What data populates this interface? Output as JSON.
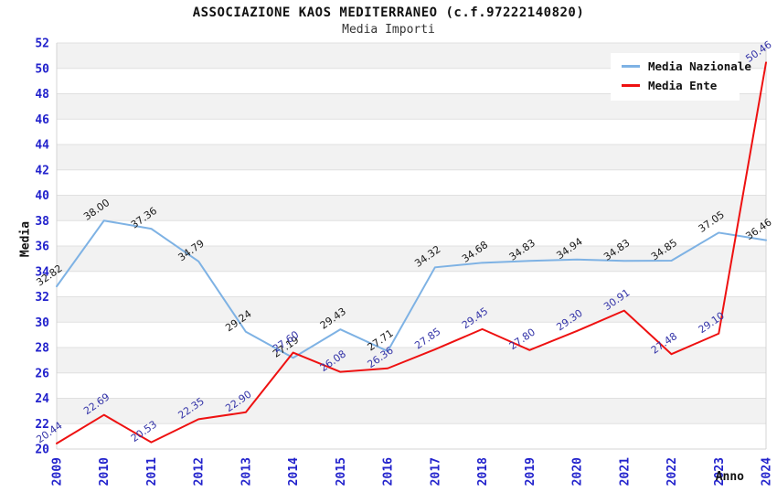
{
  "page": {
    "title": "ASSOCIAZIONE KAOS MEDITERRANEO (c.f.97222140820)",
    "subtitle": "Media Importi"
  },
  "legend": {
    "items": [
      {
        "label": "Media Nazionale",
        "color": "#7eb2e4"
      },
      {
        "label": "Media Ente",
        "color": "#ee1111"
      }
    ]
  },
  "chart_data": {
    "type": "line",
    "title": "ASSOCIAZIONE KAOS MEDITERRANEO (c.f.97222140820)",
    "subtitle": "Media Importi",
    "xlabel": "Anno",
    "ylabel": "Media",
    "x": [
      2009,
      2010,
      2011,
      2012,
      2013,
      2014,
      2015,
      2016,
      2017,
      2018,
      2019,
      2020,
      2021,
      2022,
      2023,
      2024
    ],
    "series": [
      {
        "name": "Media Nazionale",
        "color": "#7eb2e4",
        "label_color": "#1a1a1a",
        "values": [
          32.82,
          38.0,
          37.36,
          34.79,
          29.24,
          27.19,
          29.43,
          27.71,
          34.32,
          34.68,
          34.83,
          34.94,
          34.83,
          34.85,
          37.05,
          36.46
        ]
      },
      {
        "name": "Media Ente",
        "color": "#ee1111",
        "label_color": "#3434a8",
        "values": [
          20.44,
          22.69,
          20.53,
          22.35,
          22.9,
          27.6,
          26.08,
          26.36,
          27.85,
          29.45,
          27.8,
          29.3,
          30.91,
          27.48,
          29.1,
          50.46
        ]
      }
    ],
    "ylim": [
      20,
      52
    ],
    "ytick_step": 2,
    "tick_label_color": "#2222cc",
    "grid": "horizontal gridlines with alternating shaded bands",
    "band_color": "#f2f2f2",
    "grid_color": "#e0e0e0",
    "border_color": "#d4d4d4",
    "legend_position": "top-right",
    "point_label_format": "2 decimals, rotated"
  }
}
